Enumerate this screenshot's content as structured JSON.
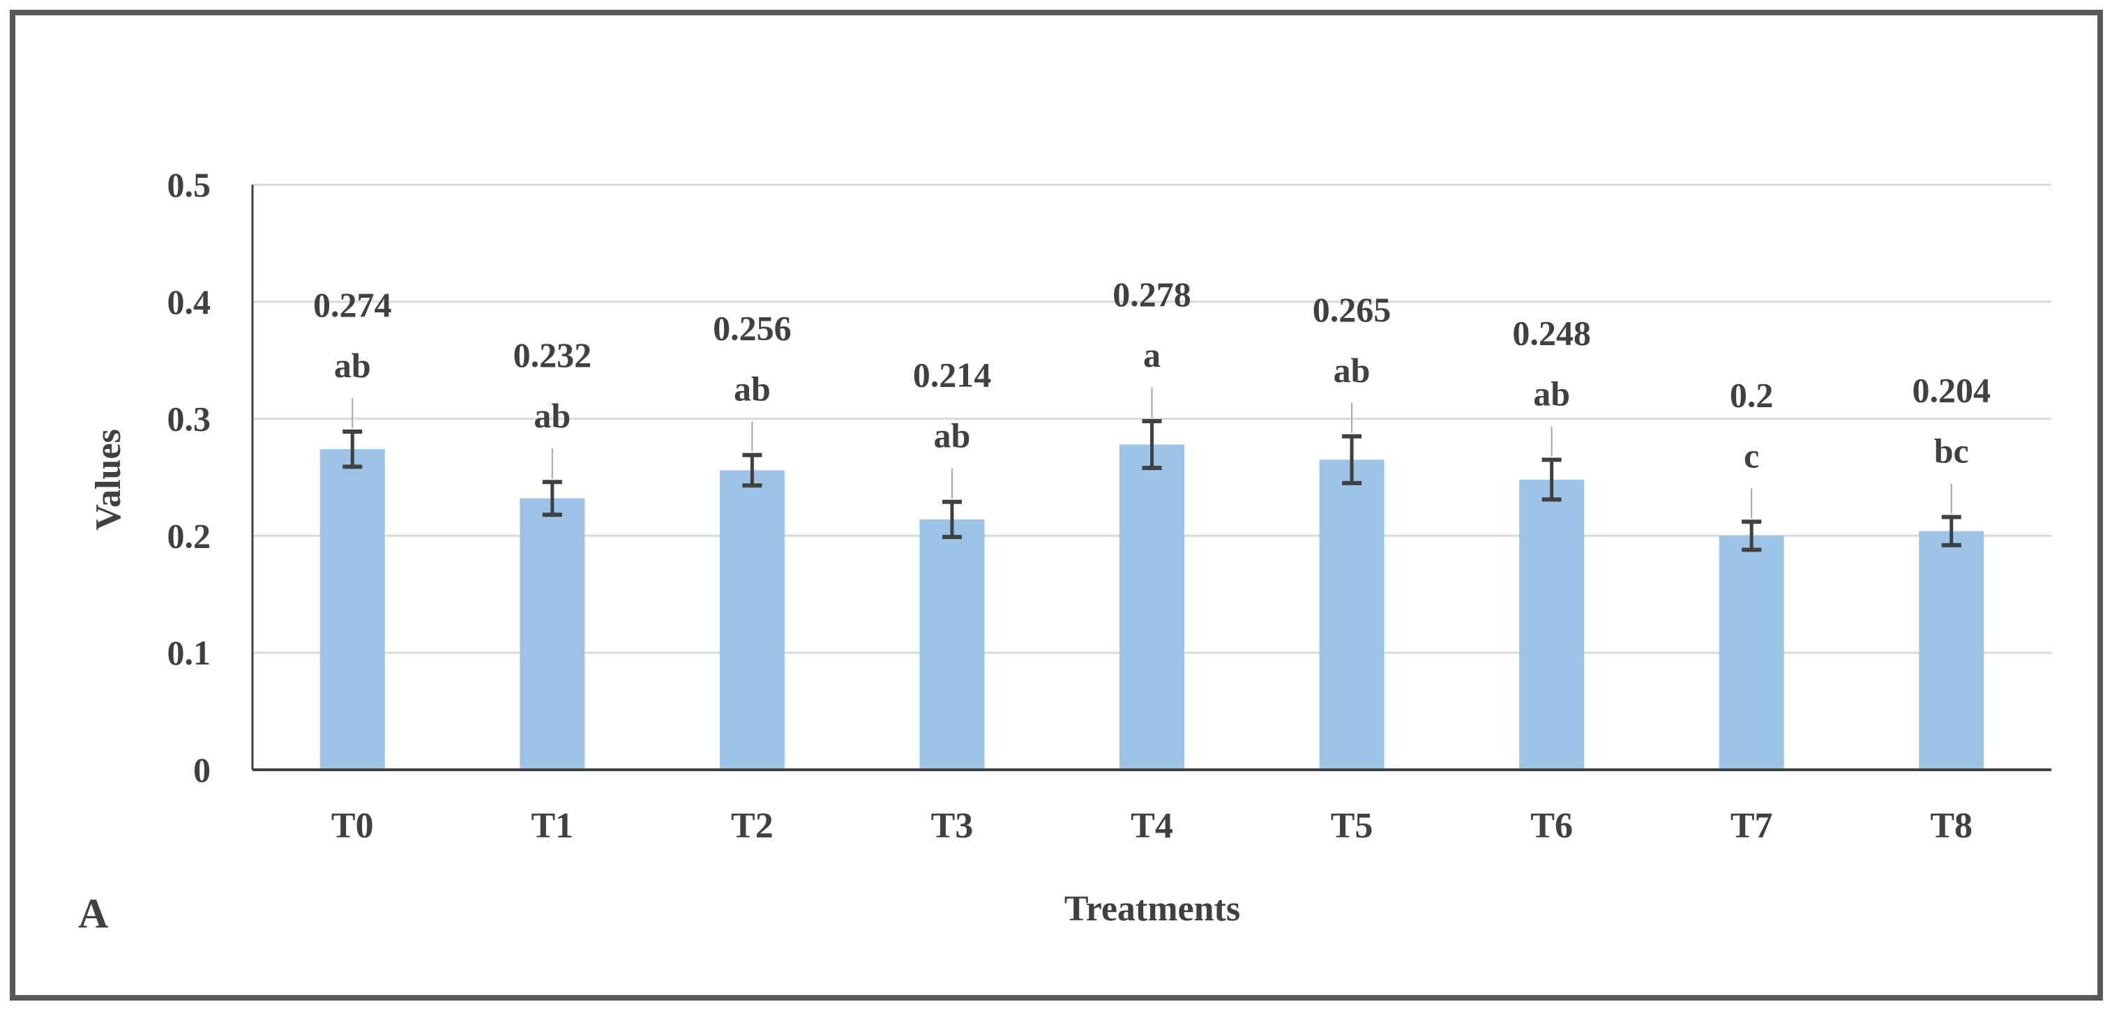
{
  "panel_label": "A",
  "chart_data": {
    "type": "bar",
    "title": "",
    "xlabel": "Treatments",
    "ylabel": "Values",
    "ylim": [
      0,
      0.5
    ],
    "yticks": [
      "0",
      "0.1",
      "0.2",
      "0.3",
      "0.4",
      "0.5"
    ],
    "grid": true,
    "categories": [
      "T0",
      "T1",
      "T2",
      "T3",
      "T4",
      "T5",
      "T6",
      "T7",
      "T8"
    ],
    "values": [
      0.274,
      0.232,
      0.256,
      0.214,
      0.278,
      0.265,
      0.248,
      0.2,
      0.204
    ],
    "value_labels": [
      "0.274",
      "0.232",
      "0.256",
      "0.214",
      "0.278",
      "0.265",
      "0.248",
      "0.2",
      "0.204"
    ],
    "errors": [
      0.015,
      0.014,
      0.013,
      0.015,
      0.02,
      0.02,
      0.017,
      0.012,
      0.012
    ],
    "significance_letters": [
      "ab",
      "ab",
      "ab",
      "ab",
      "a",
      "ab",
      "ab",
      "c",
      "bc"
    ],
    "colors": {
      "bar": "#9dc3e6",
      "error_bar": "#404040",
      "grid": "#d9d9d9",
      "axis": "#404040",
      "frame": "#595959"
    }
  }
}
